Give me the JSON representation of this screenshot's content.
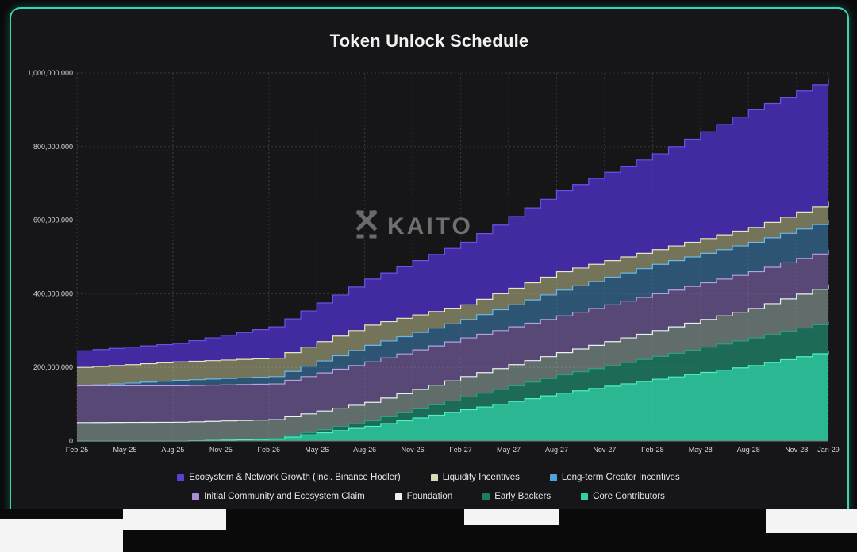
{
  "title": "Token Unlock Schedule",
  "watermark": "KAITO",
  "colors": {
    "panel_bg": "#161618",
    "border": "#3ad6b4",
    "grid": "#3a3a3e"
  },
  "legend_rows": [
    [
      {
        "label": "Ecosystem & Network Growth (Incl. Binance Hodler)",
        "color": "#5b3fd1"
      },
      {
        "label": "Liquidity Incentives",
        "color": "#d9d9b8"
      },
      {
        "label": "Long-term Creator Incentives",
        "color": "#4fa3d9"
      }
    ],
    [
      {
        "label": "Initial Community and Ecosystem Claim",
        "color": "#a88ed6"
      },
      {
        "label": "Foundation",
        "color": "#e8f4f2"
      },
      {
        "label": "Early Backers",
        "color": "#1f7a63"
      },
      {
        "label": "Core Contributors",
        "color": "#2fd3a8"
      }
    ]
  ],
  "chart_data": {
    "type": "area",
    "stacked": true,
    "title": "Token Unlock Schedule",
    "x_tick_labels": [
      "Feb-25",
      "May-25",
      "Aug-25",
      "Nov-25",
      "Feb-26",
      "May-26",
      "Aug-26",
      "Nov-26",
      "Feb-27",
      "May-27",
      "Aug-27",
      "Nov-27",
      "Feb-28",
      "May-28",
      "Aug-28",
      "Nov-28",
      "Jan-29"
    ],
    "y_tick_labels": [
      "0",
      "200,000,000",
      "400,000,000",
      "600,000,000",
      "800,000,000",
      "1,000,000,000"
    ],
    "ylim": [
      0,
      1000000000
    ],
    "x_months": [
      "2025-02",
      "2029-01"
    ],
    "grid": true,
    "legend_position": "bottom",
    "cumulative_totals_at": {
      "x": [
        "Feb-25",
        "Aug-25",
        "Feb-26",
        "Aug-26",
        "Feb-27",
        "Aug-27",
        "Feb-28",
        "Aug-28",
        "Jan-29"
      ],
      "series": [
        {
          "name": "Core Contributors",
          "values": [
            0,
            0,
            5000000,
            40000000,
            85000000,
            130000000,
            168000000,
            205000000,
            245000000
          ]
        },
        {
          "name": "Early Backers",
          "values": [
            0,
            0,
            7000000,
            55000000,
            120000000,
            180000000,
            230000000,
            280000000,
            325000000
          ]
        },
        {
          "name": "Foundation",
          "values": [
            50000000,
            51000000,
            58000000,
            105000000,
            175000000,
            240000000,
            300000000,
            360000000,
            425000000
          ]
        },
        {
          "name": "Initial Community and Ecosystem Claim",
          "values": [
            150000000,
            150000000,
            155000000,
            215000000,
            280000000,
            340000000,
            400000000,
            460000000,
            520000000
          ]
        },
        {
          "name": "Long-term Creator Incentives",
          "values": [
            150000000,
            165000000,
            175000000,
            260000000,
            330000000,
            410000000,
            480000000,
            540000000,
            600000000
          ]
        },
        {
          "name": "Liquidity Incentives",
          "values": [
            200000000,
            215000000,
            225000000,
            315000000,
            370000000,
            460000000,
            520000000,
            580000000,
            650000000
          ]
        },
        {
          "name": "Ecosystem & Network Growth (Incl. Binance Hodler)",
          "values": [
            245000000,
            265000000,
            310000000,
            440000000,
            540000000,
            680000000,
            780000000,
            900000000,
            985000000
          ]
        }
      ]
    }
  }
}
